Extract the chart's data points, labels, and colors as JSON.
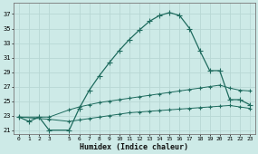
{
  "xlabel": "Humidex (Indice chaleur)",
  "bg_color": "#cdeae7",
  "grid_color": "#b8d8d4",
  "line_color": "#1e6b5e",
  "xlim": [
    -0.5,
    23.5
  ],
  "ylim": [
    20.5,
    38.5
  ],
  "yticks": [
    21,
    23,
    25,
    27,
    29,
    31,
    33,
    35,
    37
  ],
  "xticks": [
    0,
    1,
    2,
    3,
    5,
    6,
    7,
    8,
    9,
    10,
    11,
    12,
    13,
    14,
    15,
    16,
    17,
    18,
    19,
    20,
    21,
    22,
    23
  ],
  "x_tick_labels": [
    "0",
    "1",
    "2",
    "3",
    "5",
    "6",
    "7",
    "8",
    "9",
    "10",
    "11",
    "12",
    "13",
    "14",
    "15",
    "16",
    "17",
    "18",
    "19",
    "20",
    "21",
    "22",
    "23"
  ],
  "s1_x": [
    0,
    1,
    2,
    3,
    5,
    6,
    7,
    8,
    9,
    10,
    11,
    12,
    13,
    14,
    15,
    16,
    17,
    18,
    19,
    20,
    21,
    22,
    23
  ],
  "s1_y": [
    22.8,
    22.2,
    22.8,
    21.0,
    21.0,
    24.0,
    26.5,
    28.5,
    30.3,
    32.0,
    33.5,
    34.8,
    36.0,
    36.8,
    37.2,
    36.8,
    35.0,
    32.0,
    29.2,
    29.2,
    25.2,
    25.2,
    24.5
  ],
  "s2_x": [
    0,
    3,
    5,
    6,
    7,
    8,
    9,
    10,
    11,
    12,
    13,
    14,
    15,
    16,
    17,
    18,
    19,
    20,
    21,
    22,
    23
  ],
  "s2_y": [
    22.8,
    22.8,
    23.8,
    24.2,
    24.5,
    24.8,
    25.0,
    25.2,
    25.4,
    25.6,
    25.8,
    26.0,
    26.2,
    26.4,
    26.6,
    26.8,
    27.0,
    27.2,
    26.8,
    26.5,
    26.4
  ],
  "s3_x": [
    0,
    3,
    5,
    6,
    7,
    8,
    9,
    10,
    11,
    12,
    13,
    14,
    15,
    16,
    17,
    18,
    19,
    20,
    21,
    22,
    23
  ],
  "s3_y": [
    22.8,
    22.5,
    22.2,
    22.4,
    22.6,
    22.8,
    23.0,
    23.2,
    23.4,
    23.5,
    23.6,
    23.7,
    23.8,
    23.9,
    24.0,
    24.1,
    24.2,
    24.3,
    24.4,
    24.2,
    24.0
  ]
}
